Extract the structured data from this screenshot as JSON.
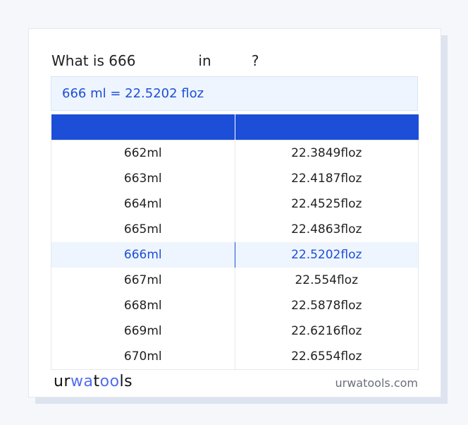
{
  "title": "What is 666              in         ?",
  "result": "666 ml = 22.5202 floz",
  "table": {
    "headers": [
      "",
      ""
    ],
    "rows": [
      [
        "662ml",
        "22.3849floz"
      ],
      [
        "663ml",
        "22.4187floz"
      ],
      [
        "664ml",
        "22.4525floz"
      ],
      [
        "665ml",
        "22.4863floz"
      ],
      [
        "666ml",
        "22.5202floz"
      ],
      [
        "667ml",
        "22.554floz"
      ],
      [
        "668ml",
        "22.5878floz"
      ],
      [
        "669ml",
        "22.6216floz"
      ],
      [
        "670ml",
        "22.6554floz"
      ]
    ],
    "highlight_index": 4
  },
  "footer": {
    "logo": "urwatools",
    "logo_parts": [
      "ur",
      "wa",
      "t",
      "oo",
      "ls"
    ],
    "site": "urwatools.com"
  },
  "colors": {
    "accent": "#1d4ed8",
    "highlight_bg": "#eef5fe"
  }
}
